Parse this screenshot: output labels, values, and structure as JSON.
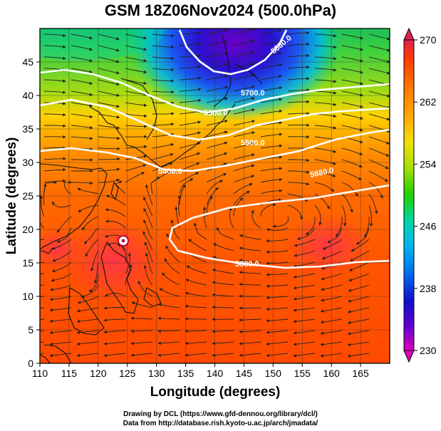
{
  "title": "GSM 18Z06Nov2024 (500.0hPa)",
  "x_axis": {
    "label": "Longitude (degrees)",
    "range": [
      110,
      170
    ],
    "ticks": [
      110,
      115,
      120,
      125,
      130,
      135,
      140,
      145,
      150,
      155,
      160,
      165
    ]
  },
  "y_axis": {
    "label": "Latitude  (degrees)",
    "range": [
      0,
      50
    ],
    "ticks": [
      0,
      5,
      10,
      15,
      20,
      25,
      30,
      35,
      40,
      45
    ]
  },
  "colorbar": {
    "range": [
      230,
      270
    ],
    "ticks": [
      "270",
      "262",
      "254",
      "246",
      "238",
      "230"
    ],
    "colors": [
      "#e0204f",
      "#ff3a00",
      "#ff7b00",
      "#ffb000",
      "#f0e000",
      "#a8e000",
      "#20d000",
      "#00d8a0",
      "#00b8f0",
      "#0070f0",
      "#1010d0",
      "#6000d0",
      "#e000c0"
    ]
  },
  "contours": {
    "color": "#ffffff",
    "labels": [
      "5880.0",
      "5880.0",
      "5880.0",
      "5700.0",
      "5500.0",
      "5500.0",
      "5400.0"
    ]
  },
  "marker": {
    "name": "typhoon-center",
    "lon": 124.3,
    "lat": 18.3
  },
  "credits": [
    "Drawing by DCL (https://www.gfd-dennou.org/library/dcl/)",
    "Data from http://database.rish.kyoto-u.ac.jp/arch/jmadata/"
  ]
}
